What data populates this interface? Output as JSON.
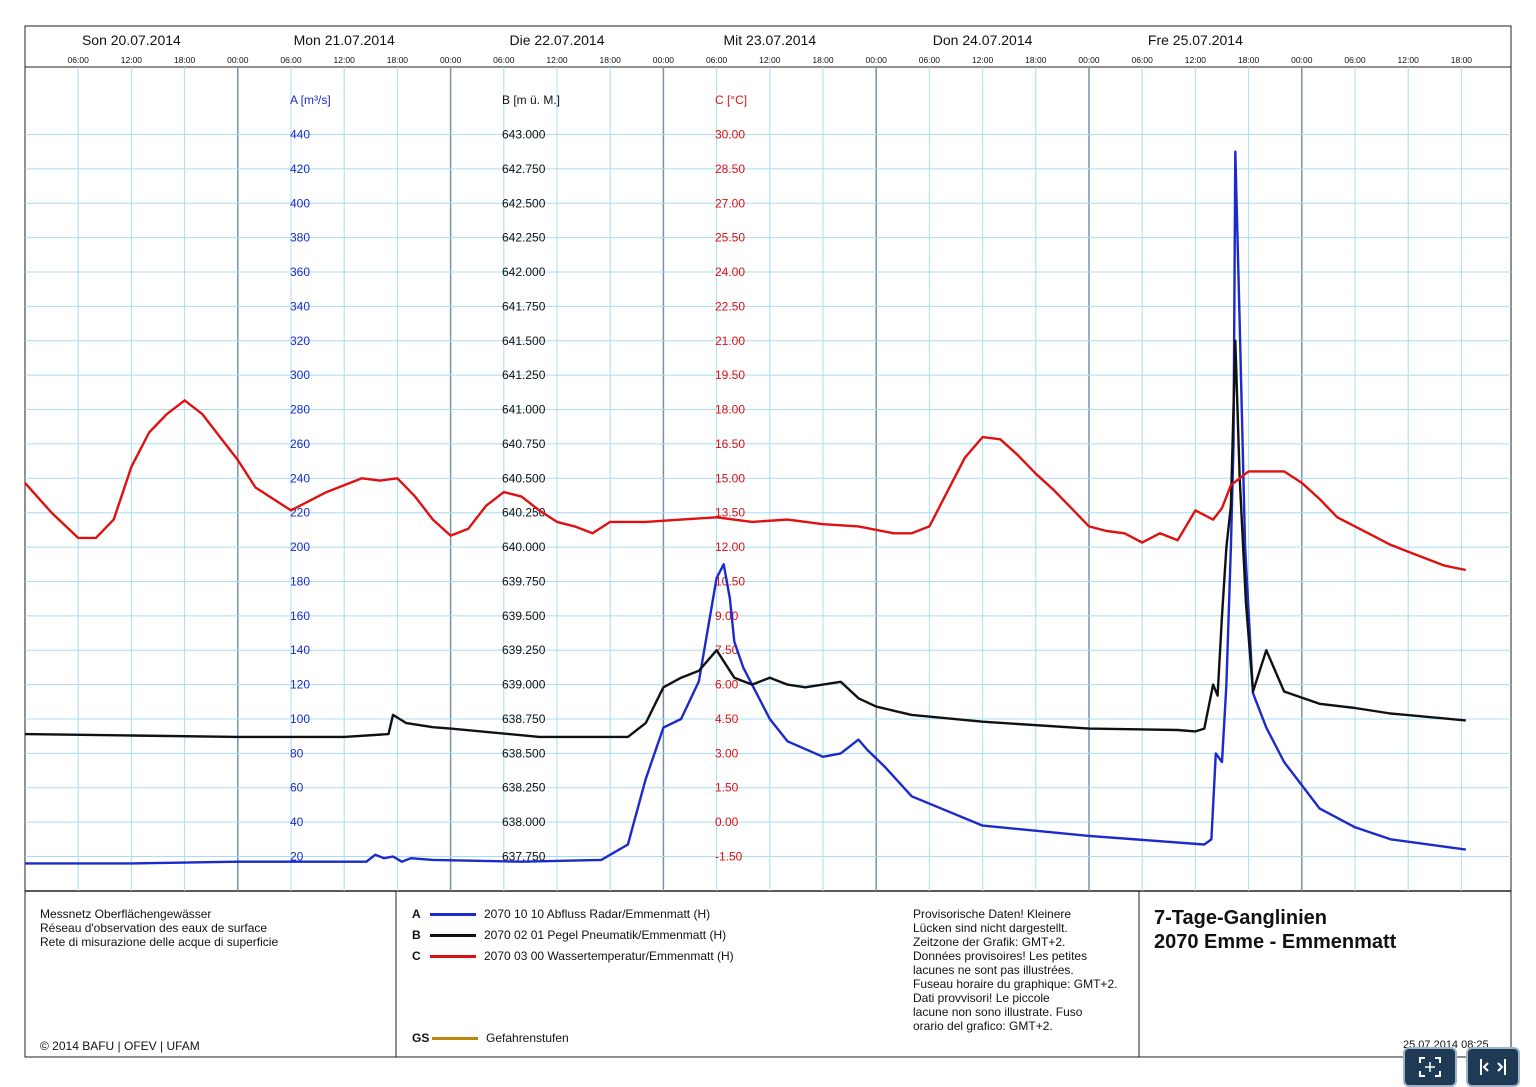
{
  "chart_data": {
    "type": "line",
    "title": "7-Tage-Ganglinien",
    "subtitle": "2070 Emme - Emmenmatt",
    "x_axis": {
      "start": "2014-07-20 00:00",
      "end": "2014-07-26 00:00",
      "day_labels": [
        "Son 20.07.2014",
        "Mon 21.07.2014",
        "Die 22.07.2014",
        "Mit 23.07.2014",
        "Don 24.07.2014",
        "Fre 25.07.2014"
      ],
      "hour_labels": [
        "00:00",
        "06:00",
        "12:00",
        "18:00"
      ],
      "grid": true
    },
    "axes": [
      {
        "id": "A",
        "label": "A [m³/s]",
        "ylim": [
          0,
          460
        ],
        "ticks": [
          "20",
          "40",
          "60",
          "80",
          "100",
          "120",
          "140",
          "160",
          "180",
          "200",
          "220",
          "240",
          "260",
          "280",
          "300",
          "320",
          "340",
          "360",
          "380",
          "400",
          "420",
          "440"
        ],
        "tick_values": [
          20,
          40,
          60,
          80,
          100,
          120,
          140,
          160,
          180,
          200,
          220,
          240,
          260,
          280,
          300,
          320,
          340,
          360,
          380,
          400,
          420,
          440
        ],
        "color": "#1a2acc"
      },
      {
        "id": "B",
        "label": "B [m ü. M.]",
        "ticks": [
          "637.750",
          "638.000",
          "638.250",
          "638.500",
          "638.750",
          "639.000",
          "639.250",
          "639.500",
          "639.750",
          "640.000",
          "640.250",
          "640.500",
          "640.750",
          "641.000",
          "641.250",
          "641.500",
          "641.750",
          "642.000",
          "642.250",
          "642.500",
          "642.750",
          "643.000"
        ],
        "tick_values": [
          637.75,
          638,
          638.25,
          638.5,
          638.75,
          639,
          639.25,
          639.5,
          639.75,
          640,
          640.25,
          640.5,
          640.75,
          641,
          641.25,
          641.5,
          641.75,
          642,
          642.25,
          642.5,
          642.75,
          643
        ],
        "color": "#111111"
      },
      {
        "id": "C",
        "label": "C [°C]",
        "ticks": [
          "-1.50",
          "0.00",
          "1.50",
          "3.00",
          "4.50",
          "6.00",
          "7.50",
          "9.00",
          "10.50",
          "12.00",
          "13.50",
          "15.00",
          "16.50",
          "18.00",
          "19.50",
          "21.00",
          "22.50",
          "24.00",
          "25.50",
          "27.00",
          "28.50",
          "30.00"
        ],
        "tick_values": [
          -1.5,
          0,
          1.5,
          3,
          4.5,
          6,
          7.5,
          9,
          10.5,
          12,
          13.5,
          15,
          16.5,
          18,
          19.5,
          21,
          22.5,
          24,
          25.5,
          27,
          28.5,
          30
        ],
        "color": "#e01010"
      }
    ],
    "series": [
      {
        "key": "A",
        "axis": "A",
        "name": "2070 10 10 Abfluss Radar/Emmenmatt (H)",
        "color": "#1a2acc",
        "x_hours": [
          0,
          12,
          24,
          32,
          38.5,
          39.5,
          40.5,
          41.5,
          42.5,
          43.5,
          46,
          56,
          65,
          68,
          70,
          72,
          74,
          76,
          78,
          78.8,
          79.5,
          80,
          81,
          82.5,
          84,
          86,
          90,
          92,
          94,
          95,
          97,
          100,
          108,
          120,
          133,
          133.8,
          134.3,
          135,
          135.5,
          136,
          136.3,
          136.5,
          137,
          137.6,
          138.5,
          140,
          142,
          146,
          150,
          154,
          162.5
        ],
        "values": [
          16,
          16,
          17,
          17,
          17,
          21,
          19,
          20,
          17,
          19,
          18,
          17,
          18,
          27,
          65,
          95,
          100,
          122,
          182,
          190,
          170,
          145,
          130,
          115,
          100,
          87,
          78,
          80,
          88,
          82,
          72,
          55,
          38,
          32,
          27,
          30,
          80,
          75,
          120,
          200,
          260,
          430,
          330,
          200,
          115,
          95,
          75,
          48,
          37,
          30,
          24
        ]
      },
      {
        "key": "B",
        "axis": "B",
        "name": "2070 02 01 Pegel Pneumatik/Emmenmatt (H)",
        "color": "#111111",
        "x_hours": [
          0,
          12,
          24,
          36,
          41,
          41.5,
          43,
          46,
          48,
          58,
          68,
          70,
          72,
          74,
          76,
          78,
          80,
          82,
          84,
          86,
          88,
          90,
          92,
          94,
          96,
          100,
          108,
          120,
          130,
          132,
          133,
          134,
          134.5,
          135,
          135.5,
          136,
          136.5,
          137,
          137.7,
          138.5,
          140,
          142,
          146,
          150,
          154,
          162.5
        ],
        "values": [
          638.64,
          638.63,
          638.62,
          638.62,
          638.64,
          638.78,
          638.72,
          638.69,
          638.68,
          638.62,
          638.62,
          638.72,
          638.98,
          639.05,
          639.1,
          639.25,
          639.05,
          639.0,
          639.05,
          639.0,
          638.98,
          639.0,
          639.02,
          638.9,
          638.84,
          638.78,
          638.73,
          638.68,
          638.67,
          638.66,
          638.68,
          639.0,
          638.92,
          639.5,
          640.0,
          640.3,
          641.5,
          640.5,
          639.6,
          638.95,
          639.25,
          638.95,
          638.86,
          638.83,
          638.79,
          638.74
        ]
      },
      {
        "key": "C",
        "axis": "C",
        "name": "2070 03 00 Wassertemperatur/Emmenmatt (H)",
        "color": "#e01010",
        "x_hours": [
          0,
          3,
          6,
          8,
          10,
          12,
          14,
          16,
          18,
          20,
          22,
          24,
          26,
          30,
          34,
          38,
          40,
          42,
          44,
          46,
          48,
          50,
          52,
          54,
          56,
          58,
          60,
          62,
          64,
          66,
          70,
          74,
          78,
          82,
          86,
          90,
          94,
          98,
          100,
          102,
          104,
          106,
          108,
          110,
          112,
          114,
          116,
          118,
          120,
          122,
          124,
          126,
          128,
          130,
          132,
          134,
          135,
          136,
          137,
          138,
          140,
          142,
          144,
          146,
          148,
          150,
          152,
          154,
          156,
          158,
          160,
          162.5
        ],
        "values": [
          14.8,
          13.5,
          12.4,
          12.4,
          13.2,
          15.5,
          17,
          17.8,
          18.4,
          17.8,
          16.8,
          15.8,
          14.6,
          13.6,
          14.4,
          15.0,
          14.9,
          15.0,
          14.2,
          13.2,
          12.5,
          12.8,
          13.8,
          14.4,
          14.2,
          13.6,
          13.1,
          12.9,
          12.6,
          13.1,
          13.1,
          13.2,
          13.3,
          13.1,
          13.2,
          13.0,
          12.9,
          12.6,
          12.6,
          12.9,
          14.4,
          15.9,
          16.8,
          16.7,
          16.0,
          15.2,
          14.5,
          13.7,
          12.9,
          12.7,
          12.6,
          12.2,
          12.6,
          12.3,
          13.6,
          13.2,
          13.7,
          14.7,
          15.0,
          15.3,
          15.3,
          15.3,
          14.8,
          14.1,
          13.3,
          12.9,
          12.5,
          12.1,
          11.8,
          11.5,
          11.2,
          11.0
        ]
      }
    ],
    "legend": {
      "gs_key": "GS",
      "gs_label": "Gefahrenstufen",
      "gs_color": "#b8860b"
    }
  },
  "footer": {
    "network_lines": [
      "Messnetz Oberflächengewässer",
      "Réseau d'observation des eaux de surface",
      "Rete di misurazione delle acque di superficie"
    ],
    "copyright": "© 2014 BAFU | OFEV | UFAM",
    "notice": [
      "Provisorische Daten! Kleinere",
      "Lücken sind nicht dargestellt.",
      "Zeitzone der Grafik: GMT+2.",
      "Données provisoires! Les petites",
      "lacunes ne sont pas illustrées.",
      "Fuseau horaire du graphique: GMT+2.",
      "Dati provvisori! Le piccole",
      "lacune non sono illustrate. Fuso",
      "orario del grafico: GMT+2."
    ],
    "title_line1": "7-Tage-Ganglinien",
    "title_line2": "2070 Emme - Emmenmatt",
    "timestamp": "25.07.2014 08:25"
  },
  "controls": {
    "fullscreen_icon": "fullscreen-icon",
    "fit_icon": "fit-width-icon"
  }
}
